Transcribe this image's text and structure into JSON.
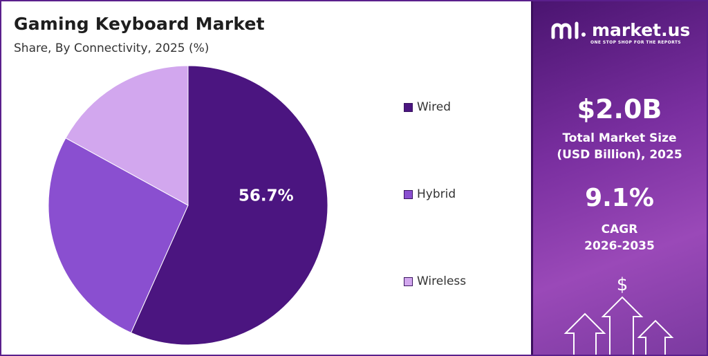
{
  "chart_data": {
    "type": "pie",
    "title": "Gaming Keyboard Market",
    "subtitle": "Share, By Connectivity, 2025 (%)",
    "categories": [
      "Wired",
      "Hybrid",
      "Wireless"
    ],
    "values": [
      56.7,
      26.3,
      17.0
    ],
    "colors": [
      "#4b1580",
      "#8a4fd0",
      "#d2a7ee"
    ],
    "data_labels": [
      "56.7%",
      "",
      ""
    ],
    "legend_position": "right"
  },
  "sidebar": {
    "brand": "market.us",
    "tagline": "ONE STOP SHOP FOR THE REPORTS",
    "market_size_value": "$2.0B",
    "market_size_label_line1": "Total Market Size",
    "market_size_label_line2": "(USD Billion), 2025",
    "cagr_value": "9.1%",
    "cagr_label_line1": "CAGR",
    "cagr_label_line2": "2026-2035",
    "currency_symbol": "$"
  }
}
